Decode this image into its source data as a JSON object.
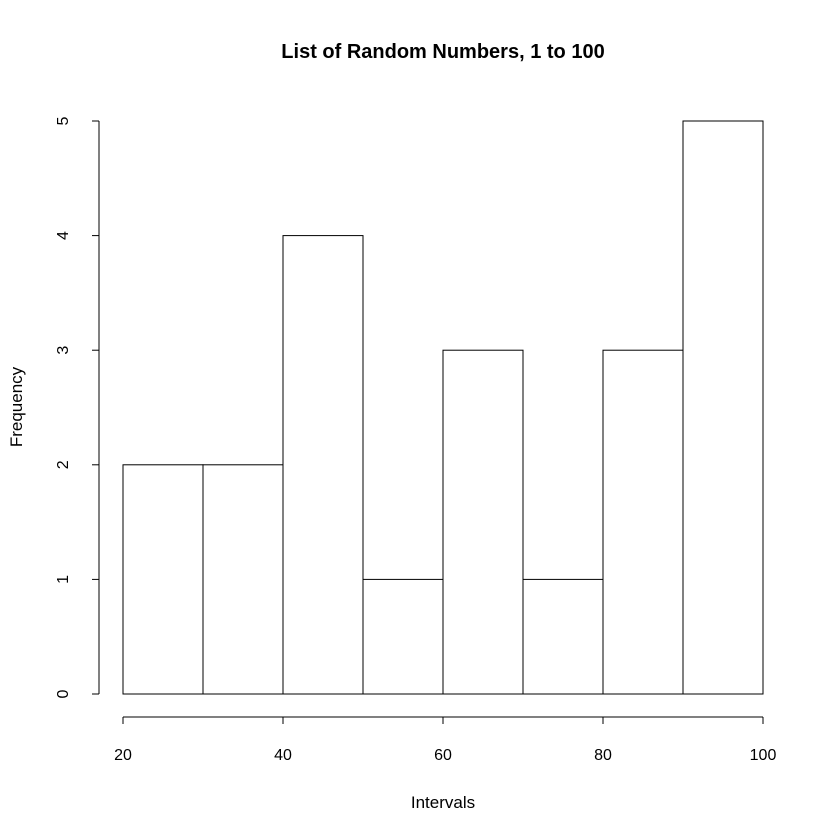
{
  "chart_data": {
    "type": "bar",
    "title": "List of Random Numbers, 1 to 100",
    "xlabel": "Intervals",
    "ylabel": "Frequency",
    "bins": [
      {
        "start": 20,
        "end": 30,
        "count": 2
      },
      {
        "start": 30,
        "end": 40,
        "count": 2
      },
      {
        "start": 40,
        "end": 50,
        "count": 4
      },
      {
        "start": 50,
        "end": 60,
        "count": 1
      },
      {
        "start": 60,
        "end": 70,
        "count": 3
      },
      {
        "start": 70,
        "end": 80,
        "count": 1
      },
      {
        "start": 80,
        "end": 90,
        "count": 3
      },
      {
        "start": 90,
        "end": 100,
        "count": 5
      }
    ],
    "xlim": [
      20,
      100
    ],
    "ylim": [
      0,
      5
    ],
    "x_ticks": [
      20,
      40,
      60,
      80,
      100
    ],
    "y_ticks": [
      0,
      1,
      2,
      3,
      4,
      5
    ],
    "grid": false,
    "legend": "none"
  }
}
